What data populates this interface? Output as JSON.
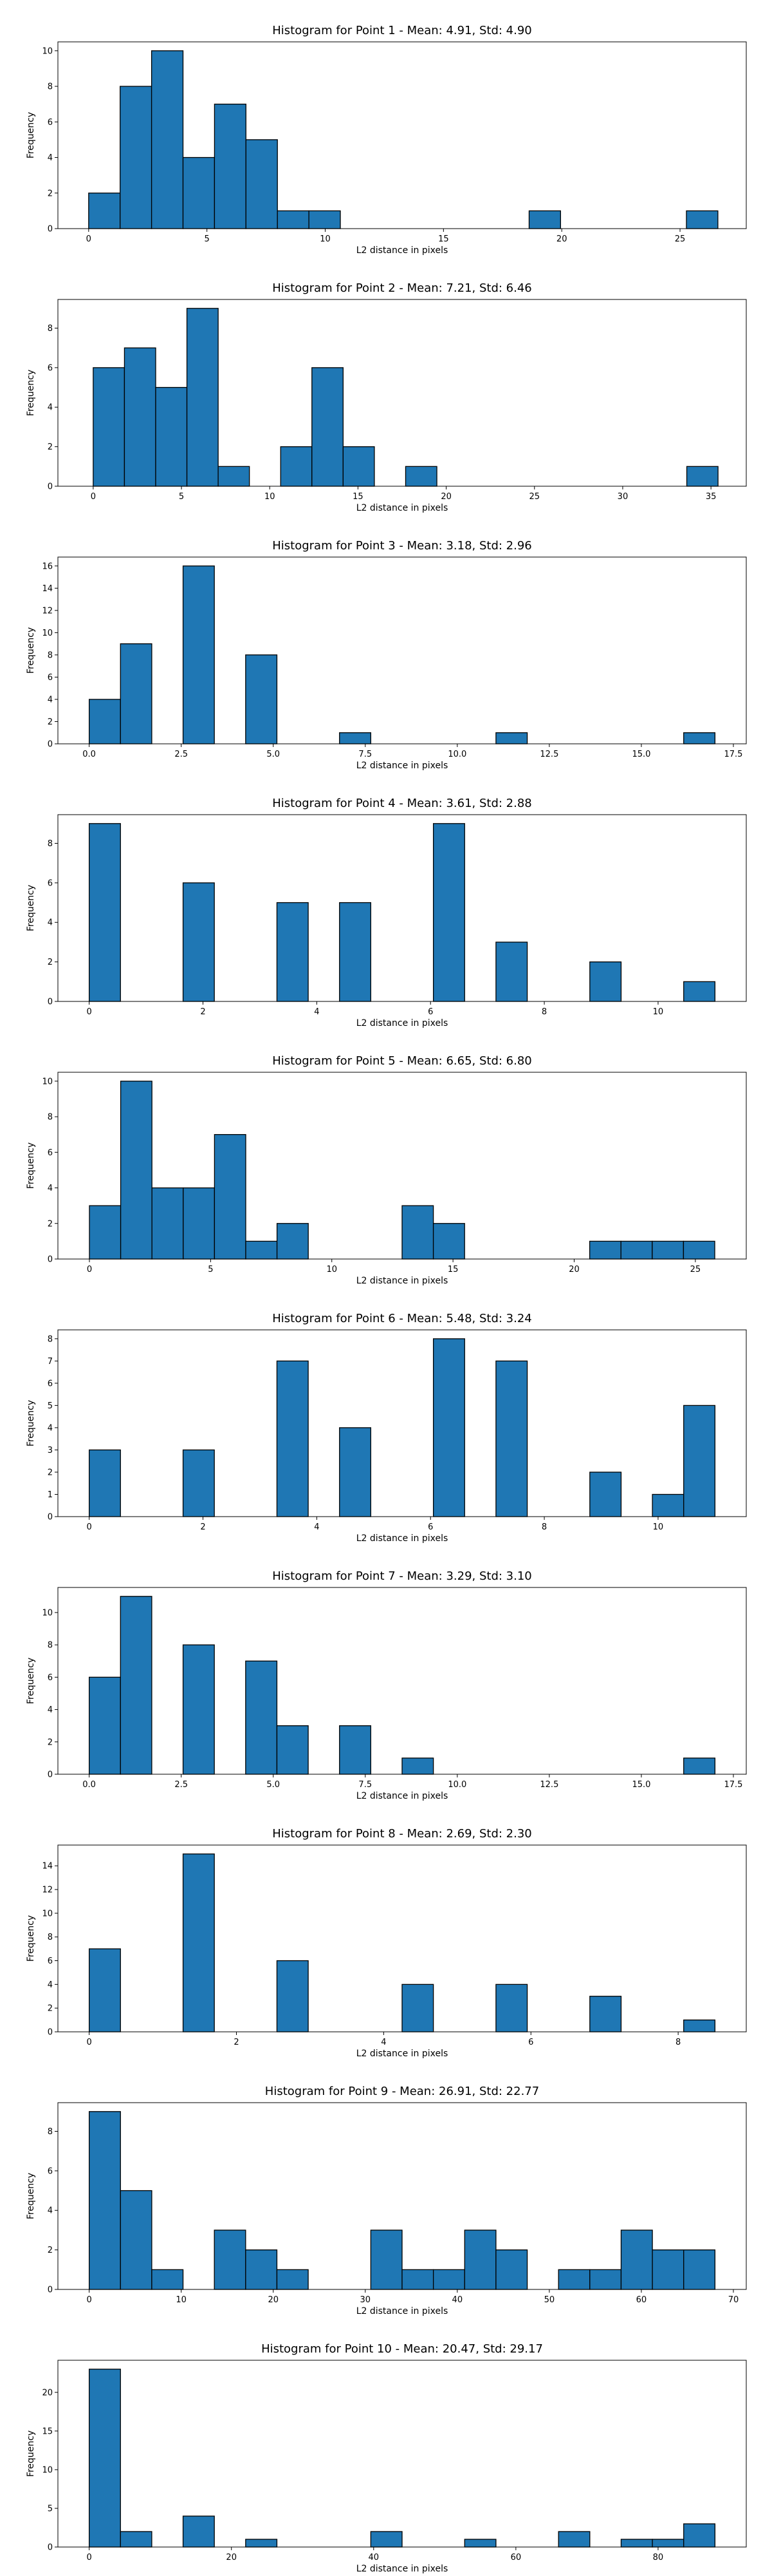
{
  "chart_data": [
    {
      "type": "bar",
      "title": "Histogram for Point 1 - Mean: 4.91, Std: 4.90",
      "xlabel": "L2 distance in pixels",
      "ylabel": "Frequency",
      "xlim": [
        -1.3,
        27.8
      ],
      "ylim": [
        0,
        10.5
      ],
      "xticks": [
        0,
        5,
        10,
        15,
        20,
        25
      ],
      "yticks": [
        0,
        2,
        4,
        6,
        8,
        10
      ],
      "xtick_labels": [
        "0",
        "5",
        "10",
        "15",
        "20",
        "25"
      ],
      "ytick_labels": [
        "0",
        "2",
        "4",
        "6",
        "8",
        "10"
      ],
      "bin_start": 0.0,
      "bin_width": 1.33,
      "counts": [
        2,
        8,
        10,
        4,
        7,
        5,
        1,
        1,
        0,
        0,
        0,
        0,
        0,
        0,
        1,
        0,
        0,
        0,
        0,
        1
      ]
    },
    {
      "type": "bar",
      "title": "Histogram for Point 2 - Mean: 7.21, Std: 6.46",
      "xlabel": "L2 distance in pixels",
      "ylabel": "Frequency",
      "xlim": [
        -2.0,
        37.0
      ],
      "ylim": [
        0,
        9.45
      ],
      "xticks": [
        0,
        5,
        10,
        15,
        20,
        25,
        30,
        35
      ],
      "yticks": [
        0,
        2,
        4,
        6,
        8
      ],
      "xtick_labels": [
        "0",
        "5",
        "10",
        "15",
        "20",
        "25",
        "30",
        "35"
      ],
      "ytick_labels": [
        "0",
        "2",
        "4",
        "6",
        "8"
      ],
      "bin_start": 0.0,
      "bin_width": 1.77,
      "counts": [
        6,
        7,
        5,
        9,
        1,
        0,
        2,
        6,
        2,
        0,
        1,
        0,
        0,
        0,
        0,
        0,
        0,
        0,
        0,
        1
      ]
    },
    {
      "type": "bar",
      "title": "Histogram for Point 3 - Mean: 3.18, Std: 2.96",
      "xlabel": "L2 distance in pixels",
      "ylabel": "Frequency",
      "xlim": [
        -0.85,
        17.85
      ],
      "ylim": [
        0,
        16.8
      ],
      "xticks": [
        0,
        2.5,
        5,
        7.5,
        10,
        12.5,
        15,
        17.5
      ],
      "yticks": [
        0,
        2,
        4,
        6,
        8,
        10,
        12,
        14,
        16
      ],
      "xtick_labels": [
        "0.0",
        "2.5",
        "5.0",
        "7.5",
        "10.0",
        "12.5",
        "15.0",
        "17.5"
      ],
      "ytick_labels": [
        "0",
        "2",
        "4",
        "6",
        "8",
        "10",
        "12",
        "14",
        "16"
      ],
      "bin_start": 0.0,
      "bin_width": 0.85,
      "counts": [
        4,
        9,
        0,
        16,
        0,
        8,
        0,
        0,
        1,
        0,
        0,
        0,
        0,
        1,
        0,
        0,
        0,
        0,
        0,
        1
      ]
    },
    {
      "type": "bar",
      "title": "Histogram for Point 4 - Mean: 3.61, Std: 2.88",
      "xlabel": "L2 distance in pixels",
      "ylabel": "Frequency",
      "xlim": [
        -0.55,
        11.55
      ],
      "ylim": [
        0,
        9.45
      ],
      "xticks": [
        0,
        2,
        4,
        6,
        8,
        10
      ],
      "yticks": [
        0,
        2,
        4,
        6,
        8
      ],
      "xtick_labels": [
        "0",
        "2",
        "4",
        "6",
        "8",
        "10"
      ],
      "ytick_labels": [
        "0",
        "2",
        "4",
        "6",
        "8"
      ],
      "bin_start": 0.0,
      "bin_width": 0.55,
      "counts": [
        9,
        0,
        0,
        6,
        0,
        0,
        5,
        0,
        5,
        0,
        0,
        9,
        0,
        3,
        0,
        0,
        2,
        0,
        0,
        1
      ]
    },
    {
      "type": "bar",
      "title": "Histogram for Point 5 - Mean: 6.65, Std: 6.80",
      "xlabel": "L2 distance in pixels",
      "ylabel": "Frequency",
      "xlim": [
        -1.3,
        27.1
      ],
      "ylim": [
        0,
        10.5
      ],
      "xticks": [
        0,
        5,
        10,
        15,
        20,
        25
      ],
      "yticks": [
        0,
        2,
        4,
        6,
        8,
        10
      ],
      "xtick_labels": [
        "0",
        "5",
        "10",
        "15",
        "20",
        "25"
      ],
      "ytick_labels": [
        "0",
        "2",
        "4",
        "6",
        "8",
        "10"
      ],
      "bin_start": 0.0,
      "bin_width": 1.29,
      "counts": [
        3,
        10,
        4,
        4,
        7,
        1,
        2,
        0,
        0,
        0,
        3,
        2,
        0,
        0,
        0,
        0,
        1,
        1,
        1,
        1
      ]
    },
    {
      "type": "bar",
      "title": "Histogram for Point 6 - Mean: 5.48, Std: 3.24",
      "xlabel": "L2 distance in pixels",
      "ylabel": "Frequency",
      "xlim": [
        -0.55,
        11.55
      ],
      "ylim": [
        0,
        8.4
      ],
      "xticks": [
        0,
        2,
        4,
        6,
        8,
        10
      ],
      "yticks": [
        0,
        1,
        2,
        3,
        4,
        5,
        6,
        7,
        8
      ],
      "xtick_labels": [
        "0",
        "2",
        "4",
        "6",
        "8",
        "10"
      ],
      "ytick_labels": [
        "0",
        "1",
        "2",
        "3",
        "4",
        "5",
        "6",
        "7",
        "8"
      ],
      "bin_start": 0.0,
      "bin_width": 0.55,
      "counts": [
        3,
        0,
        0,
        3,
        0,
        0,
        7,
        0,
        4,
        0,
        0,
        8,
        0,
        7,
        0,
        0,
        2,
        0,
        1,
        5
      ]
    },
    {
      "type": "bar",
      "title": "Histogram for Point 7 - Mean: 3.29, Std: 3.10",
      "xlabel": "L2 distance in pixels",
      "ylabel": "Frequency",
      "xlim": [
        -0.85,
        17.85
      ],
      "ylim": [
        0,
        11.55
      ],
      "xticks": [
        0,
        2.5,
        5,
        7.5,
        10,
        12.5,
        15,
        17.5
      ],
      "yticks": [
        0,
        2,
        4,
        6,
        8,
        10
      ],
      "xtick_labels": [
        "0.0",
        "2.5",
        "5.0",
        "7.5",
        "10.0",
        "12.5",
        "15.0",
        "17.5"
      ],
      "ytick_labels": [
        "0",
        "2",
        "4",
        "6",
        "8",
        "10"
      ],
      "bin_start": 0.0,
      "bin_width": 0.85,
      "counts": [
        6,
        11,
        0,
        8,
        0,
        7,
        3,
        0,
        3,
        0,
        1,
        0,
        0,
        0,
        0,
        0,
        0,
        0,
        0,
        1
      ]
    },
    {
      "type": "bar",
      "title": "Histogram for Point 8 - Mean: 2.69, Std: 2.30",
      "xlabel": "L2 distance in pixels",
      "ylabel": "Frequency",
      "xlim": [
        -0.425,
        8.925
      ],
      "ylim": [
        0,
        15.75
      ],
      "xticks": [
        0,
        2,
        4,
        6,
        8
      ],
      "yticks": [
        0,
        2,
        4,
        6,
        8,
        10,
        12,
        14
      ],
      "xtick_labels": [
        "0",
        "2",
        "4",
        "6",
        "8"
      ],
      "ytick_labels": [
        "0",
        "2",
        "4",
        "6",
        "8",
        "10",
        "12",
        "14"
      ],
      "bin_start": 0.0,
      "bin_width": 0.425,
      "counts": [
        7,
        0,
        0,
        15,
        0,
        0,
        6,
        0,
        0,
        0,
        4,
        0,
        0,
        4,
        0,
        0,
        3,
        0,
        0,
        1
      ]
    },
    {
      "type": "bar",
      "title": "Histogram for Point 9 - Mean: 26.91, Std: 22.77",
      "xlabel": "L2 distance in pixels",
      "ylabel": "Frequency",
      "xlim": [
        -3.4,
        71.4
      ],
      "ylim": [
        0,
        9.45
      ],
      "xticks": [
        0,
        10,
        20,
        30,
        40,
        50,
        60,
        70
      ],
      "yticks": [
        0,
        2,
        4,
        6,
        8
      ],
      "xtick_labels": [
        "0",
        "10",
        "20",
        "30",
        "40",
        "50",
        "60",
        "70"
      ],
      "ytick_labels": [
        "0",
        "2",
        "4",
        "6",
        "8"
      ],
      "bin_start": 0.0,
      "bin_width": 3.4,
      "counts": [
        9,
        5,
        1,
        0,
        3,
        2,
        1,
        0,
        0,
        3,
        1,
        1,
        3,
        2,
        0,
        1,
        1,
        3,
        2,
        2
      ]
    },
    {
      "type": "bar",
      "title": "Histogram for Point 10 - Mean: 20.47, Std: 29.17",
      "xlabel": "L2 distance in pixels",
      "ylabel": "Frequency",
      "xlim": [
        -4.4,
        92.4
      ],
      "ylim": [
        0,
        24.15
      ],
      "xticks": [
        0,
        20,
        40,
        60,
        80
      ],
      "yticks": [
        0,
        5,
        10,
        15,
        20
      ],
      "xtick_labels": [
        "0",
        "20",
        "40",
        "60",
        "80"
      ],
      "ytick_labels": [
        "0",
        "5",
        "10",
        "15",
        "20"
      ],
      "bin_start": 0.0,
      "bin_width": 4.4,
      "counts": [
        23,
        2,
        0,
        4,
        0,
        1,
        0,
        0,
        0,
        2,
        0,
        0,
        1,
        0,
        0,
        2,
        0,
        1,
        1,
        3
      ]
    }
  ]
}
